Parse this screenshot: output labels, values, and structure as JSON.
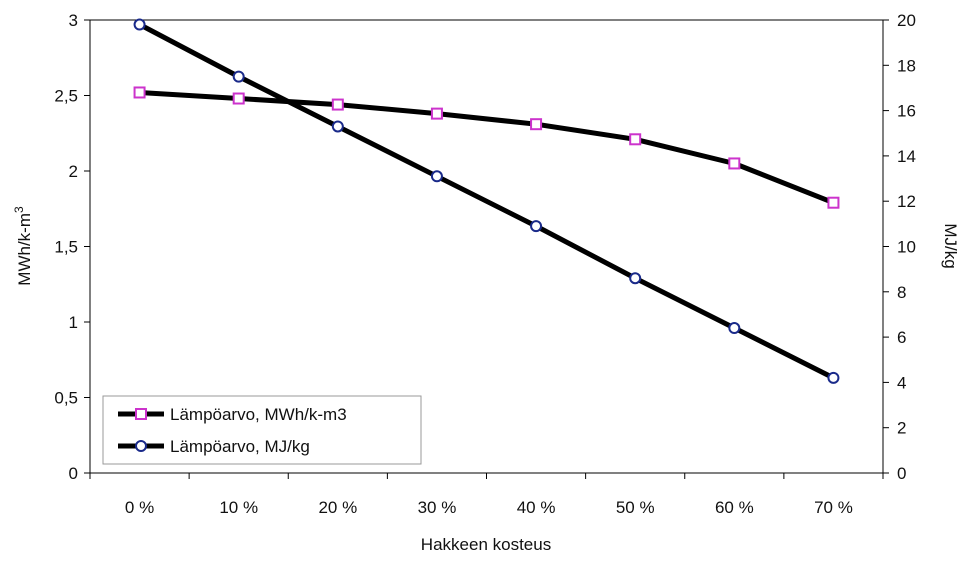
{
  "chart_data": {
    "type": "line",
    "categories": [
      "0 %",
      "10 %",
      "20 %",
      "30 %",
      "40 %",
      "50 %",
      "60 %",
      "70 %"
    ],
    "xlabel": "Hakkeen kosteus",
    "ylabel": "MWh/k-m",
    "ylabel_superscript": "3",
    "y2label": "MJ/kg",
    "ylim": [
      0,
      3
    ],
    "yticks": [
      "0",
      "0,5",
      "1",
      "1,5",
      "2",
      "2,5",
      "3"
    ],
    "y2lim": [
      0,
      20
    ],
    "y2ticks": [
      "0",
      "2",
      "4",
      "6",
      "8",
      "10",
      "12",
      "14",
      "16",
      "18",
      "20"
    ],
    "grid": false,
    "legend_position": "bottom-left",
    "series": [
      {
        "name": "Lämpöarvo, MWh/k-m3",
        "axis": "left",
        "marker": "square",
        "marker_color": "#cc33cc",
        "line_color": "#000000",
        "values": [
          2.52,
          2.48,
          2.44,
          2.38,
          2.31,
          2.21,
          2.05,
          1.79
        ]
      },
      {
        "name": "Lämpöarvo, MJ/kg",
        "axis": "right",
        "marker": "circle",
        "marker_color": "#1a2a8a",
        "line_color": "#000000",
        "values": [
          19.8,
          17.5,
          15.3,
          13.1,
          10.9,
          8.6,
          6.4,
          4.2
        ]
      }
    ]
  }
}
